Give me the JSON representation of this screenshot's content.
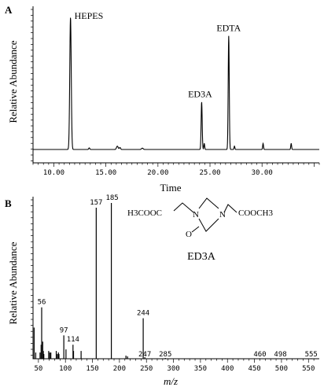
{
  "chart_data": [
    {
      "panel_label": "A",
      "type": "line",
      "xlabel": "Time",
      "ylabel": "Relative Abundance",
      "xlim": [
        8.0,
        35.5
      ],
      "ylim": [
        0,
        100
      ],
      "x_ticks": [
        "10.00",
        "15.00",
        "20.00",
        "25.00",
        "30.00"
      ],
      "x_tick_values": [
        10,
        15,
        20,
        25,
        30
      ],
      "annotations": [
        {
          "text": "HEPES",
          "x": 11.6
        },
        {
          "text": "ED3A",
          "x": 24.2
        },
        {
          "text": "EDTA",
          "x": 26.8
        }
      ],
      "peaks": [
        {
          "x": 11.6,
          "y": 100,
          "w": 0.07
        },
        {
          "x": 13.4,
          "y": 1.2,
          "w": 0.05
        },
        {
          "x": 16.1,
          "y": 2.5,
          "w": 0.08
        },
        {
          "x": 16.35,
          "y": 1.5,
          "w": 0.06
        },
        {
          "x": 18.5,
          "y": 1.0,
          "w": 0.08
        },
        {
          "x": 24.2,
          "y": 36,
          "w": 0.05
        },
        {
          "x": 24.45,
          "y": 4.5,
          "w": 0.04
        },
        {
          "x": 26.8,
          "y": 86,
          "w": 0.05
        },
        {
          "x": 27.35,
          "y": 2.5,
          "w": 0.04
        },
        {
          "x": 30.1,
          "y": 4.5,
          "w": 0.04
        },
        {
          "x": 32.8,
          "y": 4.5,
          "w": 0.04
        }
      ]
    },
    {
      "panel_label": "B",
      "type": "bar",
      "xlabel": "m/z",
      "ylabel": "Relative Abundance",
      "xlim": [
        40,
        570
      ],
      "ylim": [
        0,
        100
      ],
      "x_ticks": [
        50,
        100,
        150,
        200,
        250,
        300,
        350,
        400,
        450,
        500,
        550
      ],
      "x": [
        42,
        45,
        53,
        55,
        56,
        58,
        59,
        60,
        69,
        71,
        73,
        83,
        85,
        87,
        88,
        97,
        101,
        114,
        115,
        129,
        157,
        185,
        212,
        215,
        244,
        247,
        285,
        460,
        498,
        555
      ],
      "y": [
        20,
        4,
        4,
        9,
        33,
        11,
        5,
        3,
        5,
        4,
        4,
        5,
        3,
        4,
        3,
        15,
        6,
        9,
        5,
        5,
        97,
        100,
        2,
        1.5,
        26,
        1,
        0.5,
        0.3,
        0.3,
        0.3
      ],
      "peak_labels": [
        {
          "x": 56,
          "text": "56"
        },
        {
          "x": 97,
          "text": "97"
        },
        {
          "x": 114,
          "text": "114"
        },
        {
          "x": 157,
          "text": "157"
        },
        {
          "x": 185,
          "text": "185"
        },
        {
          "x": 244,
          "text": "244"
        },
        {
          "x": 247,
          "text": "247"
        },
        {
          "x": 285,
          "text": "285"
        },
        {
          "x": 460,
          "text": "460"
        },
        {
          "x": 498,
          "text": "498"
        },
        {
          "x": 555,
          "text": "555"
        }
      ],
      "structure": {
        "left_group": "H3COOC",
        "right_group": "COOCH3",
        "ring_atoms": [
          "N",
          "N",
          "O"
        ],
        "name": "ED3A"
      }
    }
  ]
}
